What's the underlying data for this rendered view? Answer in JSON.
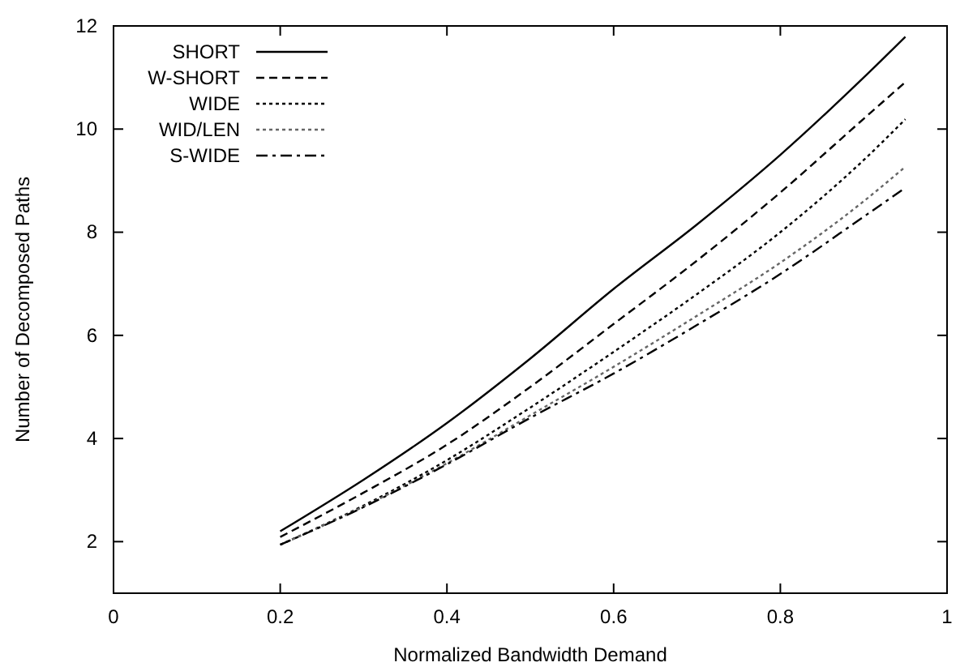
{
  "chart_data": {
    "type": "line",
    "xlabel": "Normalized Bandwidth Demand",
    "ylabel": "Number of Decomposed Paths",
    "xlim": [
      0,
      1
    ],
    "ylim": [
      1,
      12
    ],
    "xticks": [
      0,
      0.2,
      0.4,
      0.6,
      0.8,
      1
    ],
    "yticks": [
      2,
      4,
      6,
      8,
      10,
      12
    ],
    "grid": false,
    "legend": "top left",
    "marker": "none",
    "x": [
      0.2,
      0.3,
      0.4,
      0.5,
      0.6,
      0.7,
      0.8,
      0.9,
      0.95
    ],
    "series": [
      {
        "name": "SHORT",
        "color": "#000000",
        "line_style": "solid",
        "values": [
          2.2,
          3.2,
          4.3,
          5.55,
          6.9,
          8.15,
          9.5,
          11.0,
          11.79
        ]
      },
      {
        "name": "W-SHORT",
        "color": "#000000",
        "line_style": "dashed",
        "values": [
          2.09,
          2.95,
          3.88,
          5.0,
          6.22,
          7.45,
          8.77,
          10.2,
          10.91
        ]
      },
      {
        "name": "WIDE",
        "color": "#000000",
        "line_style": "dotted",
        "values": [
          1.94,
          2.7,
          3.58,
          4.6,
          5.68,
          6.8,
          8.0,
          9.4,
          10.19
        ]
      },
      {
        "name": "WID/LEN",
        "color": "#666666",
        "line_style": "dotted",
        "values": [
          1.94,
          2.68,
          3.52,
          4.45,
          5.39,
          6.38,
          7.41,
          8.6,
          9.27
        ]
      },
      {
        "name": "S-WIDE",
        "color": "#000000",
        "line_style": "dashdot",
        "values": [
          1.94,
          2.67,
          3.5,
          4.4,
          5.26,
          6.2,
          7.19,
          8.3,
          8.86
        ]
      }
    ]
  }
}
